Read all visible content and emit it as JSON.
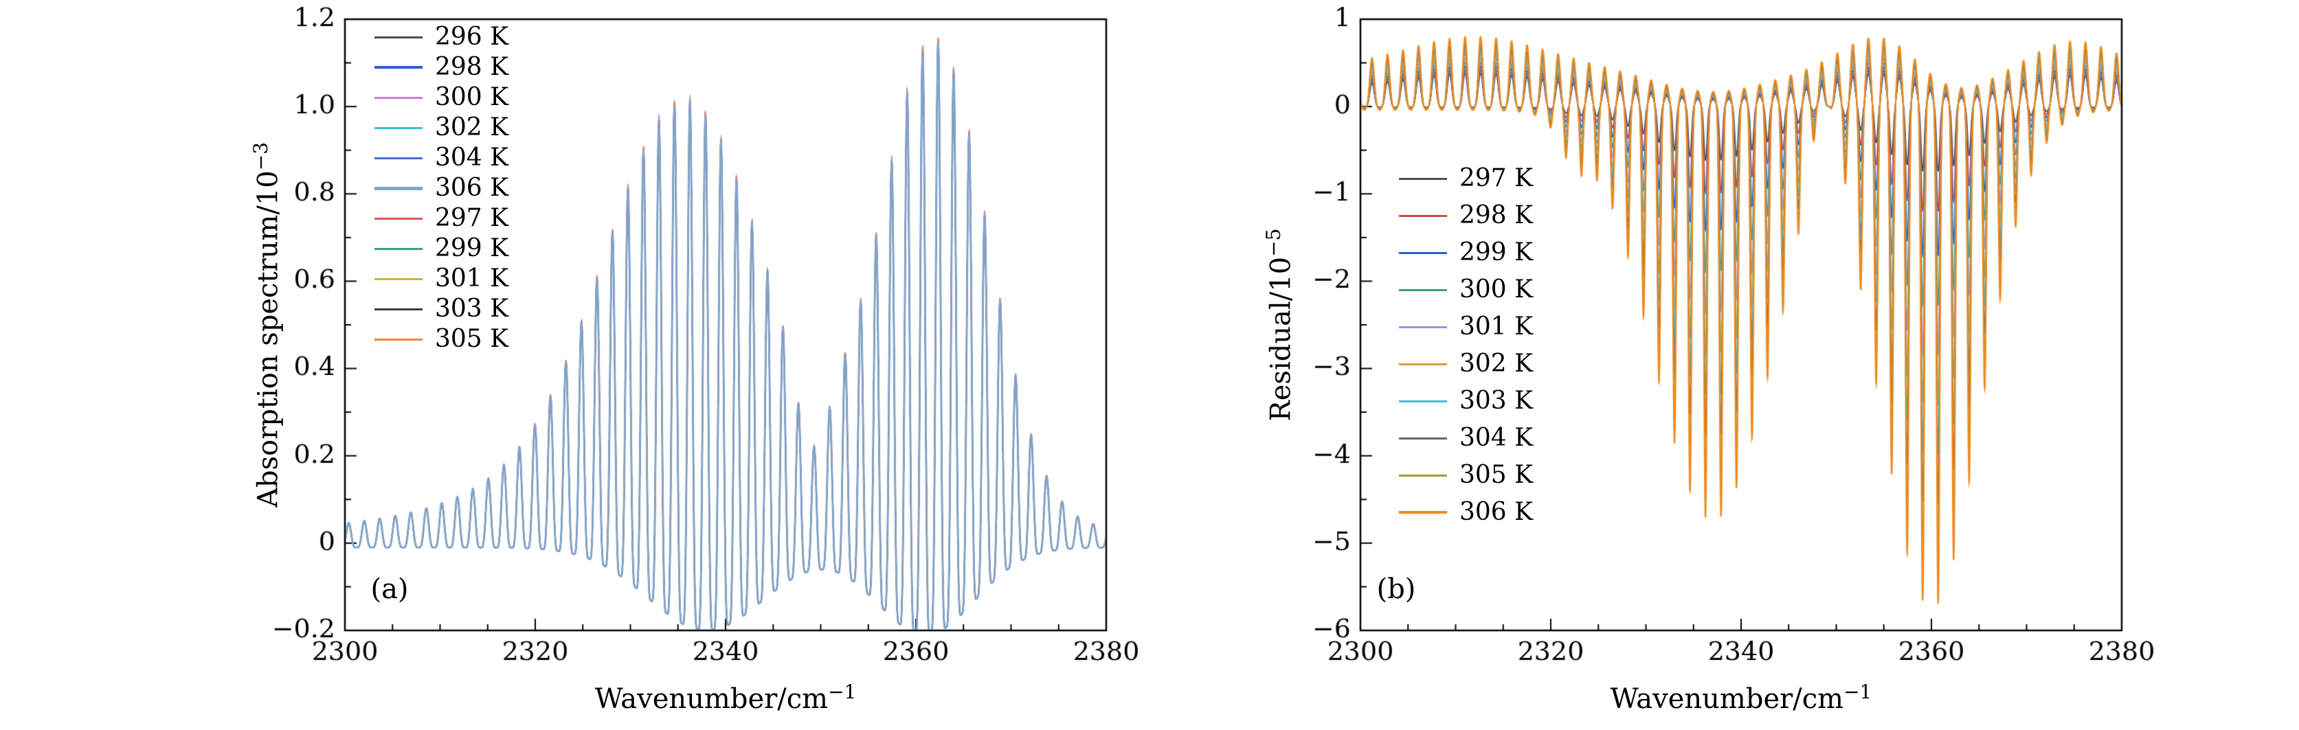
{
  "figure": {
    "background": "#ffffff",
    "axis_color": "#000000"
  },
  "chart_data": [
    {
      "id": "a",
      "type": "line",
      "model": "comb_spectrum",
      "panel_tag": "(a)",
      "xlabel": {
        "base": "Wavenumber/cm",
        "sup": "−1"
      },
      "ylabel": {
        "base": "Absorption spectrum/10",
        "sup": "−3"
      },
      "xlim": [
        2300,
        2380
      ],
      "ylim": [
        -0.2,
        1.2
      ],
      "xticks": {
        "values": [
          2300,
          2320,
          2340,
          2360,
          2380
        ],
        "labels": [
          "2300",
          "2320",
          "2340",
          "2360",
          "2380"
        ]
      },
      "yticks": {
        "values": [
          -0.2,
          0,
          0.2,
          0.4,
          0.6,
          0.8,
          1.0,
          1.2
        ],
        "labels": [
          "−0.2",
          "0",
          "0.2",
          "0.4",
          "0.6",
          "0.8",
          "1.0",
          "1.2"
        ]
      },
      "x_minor_step": 5,
      "y_minor_step": 0.1,
      "comb": {
        "spacing": 1.63,
        "x0": 2300.4,
        "peak_power": 2.2
      },
      "upper_envelope": [
        {
          "c": 2336,
          "a": 0.84,
          "s": 8.2
        },
        {
          "c": 2330,
          "a": 0.15,
          "s": 14
        },
        {
          "c": 2362,
          "a": 1.1,
          "s": 5.6
        },
        {
          "c": 2349,
          "a": -0.18,
          "s": 1.6
        }
      ],
      "upper_const": 0.03,
      "lower_envelope": [
        {
          "c": 2338,
          "a": -0.19,
          "s": 6.2
        },
        {
          "c": 2361,
          "a": -0.2,
          "s": 5.2
        }
      ],
      "lower_const": -0.01,
      "series": [
        {
          "label": "296 K",
          "color": "#4d4d4d",
          "tip": 1.004,
          "lw": 1.7
        },
        {
          "label": "298 K",
          "color": "#2e5fd0",
          "tip": 1.008,
          "lw": 2.2
        },
        {
          "label": "300 K",
          "color": "#c77fd0",
          "tip": 1.013,
          "lw": 1.7
        },
        {
          "label": "302 K",
          "color": "#38c0cf",
          "tip": 1.003,
          "lw": 1.7
        },
        {
          "label": "304 K",
          "color": "#4d6fd6",
          "tip": 1.001,
          "lw": 1.7
        },
        {
          "label": "306 K",
          "color": "#84a3c9",
          "tip": 1.0,
          "lw": 2.8
        },
        {
          "label": "297 K",
          "color": "#d95757",
          "tip": 1.006,
          "lw": 1.7
        },
        {
          "label": "299 K",
          "color": "#3aa379",
          "tip": 1.002,
          "lw": 1.7
        },
        {
          "label": "301 K",
          "color": "#ccb23d",
          "tip": 1.005,
          "lw": 1.7
        },
        {
          "label": "303 K",
          "color": "#463b33",
          "tip": 1.001,
          "lw": 1.7
        },
        {
          "label": "305 K",
          "color": "#ee8435",
          "tip": 1.01,
          "lw": 1.7
        }
      ],
      "draw_order": [
        0,
        1,
        2,
        3,
        4,
        6,
        7,
        8,
        9,
        10,
        5
      ]
    },
    {
      "id": "b",
      "type": "line",
      "model": "comb_residual",
      "panel_tag": "(b)",
      "xlabel": {
        "base": "Wavenumber/cm",
        "sup": "−1"
      },
      "ylabel": {
        "base": "Residual/10",
        "sup": "−5"
      },
      "xlim": [
        2300,
        2380
      ],
      "ylim": [
        -6,
        1
      ],
      "xticks": {
        "values": [
          2300,
          2320,
          2340,
          2360,
          2380
        ],
        "labels": [
          "2300",
          "2320",
          "2340",
          "2360",
          "2380"
        ]
      },
      "yticks": {
        "values": [
          -6,
          -5,
          -4,
          -3,
          -2,
          -1,
          0,
          1
        ],
        "labels": [
          "−6",
          "−5",
          "−4",
          "−3",
          "−2",
          "−1",
          "0",
          "1"
        ]
      },
      "x_minor_step": 5,
      "y_minor_step": 0.5,
      "comb": {
        "spacing": 1.63,
        "x0": 2300.4,
        "neg_power": 5,
        "pos_power": 2.5,
        "pos_base": 0.4,
        "pos_slope": 0.6
      },
      "neg_envelope": [
        {
          "c": 2337,
          "a": -4.7,
          "s": 6.2
        },
        {
          "c": 2360,
          "a": -5.7,
          "s": 5.2
        },
        {
          "c": 2349,
          "a": 1.4,
          "s": 1.8
        },
        {
          "c": 2322.5,
          "a": -0.4,
          "s": 1.5
        }
      ],
      "neg_const": -0.04,
      "pos_envelope": [
        {
          "c": 2312,
          "a": 0.35,
          "s": 7
        },
        {
          "c": 2355,
          "a": 0.4,
          "s": 4
        },
        {
          "c": 2375,
          "a": 0.3,
          "s": 4
        },
        {
          "c": 2337,
          "a": -0.28,
          "s": 6
        },
        {
          "c": 2362,
          "a": -0.3,
          "s": 4
        }
      ],
      "pos_const": 0.45,
      "series": [
        {
          "label": "297 K",
          "color": "#4d4d4d",
          "scale": 0.13,
          "lw": 1.7
        },
        {
          "label": "298 K",
          "color": "#d94a43",
          "scale": 0.21,
          "lw": 1.7
        },
        {
          "label": "299 K",
          "color": "#2e5bd8",
          "scale": 0.3,
          "lw": 1.7
        },
        {
          "label": "300 K",
          "color": "#33a37a",
          "scale": 0.4,
          "lw": 1.7
        },
        {
          "label": "301 K",
          "color": "#b08bd9",
          "scale": 0.5,
          "lw": 1.7
        },
        {
          "label": "302 K",
          "color": "#cfa63a",
          "scale": 0.6,
          "lw": 1.7
        },
        {
          "label": "303 K",
          "color": "#3ec0cf",
          "scale": 0.7,
          "lw": 1.7
        },
        {
          "label": "304 K",
          "color": "#6f5d76",
          "scale": 0.8,
          "lw": 1.7
        },
        {
          "label": "305 K",
          "color": "#9fa02a",
          "scale": 0.9,
          "lw": 1.7
        },
        {
          "label": "306 K",
          "color": "#ef8a1f",
          "scale": 1.0,
          "lw": 2.2
        }
      ],
      "draw_order": [
        0,
        1,
        2,
        3,
        4,
        5,
        6,
        7,
        8,
        9
      ]
    }
  ]
}
